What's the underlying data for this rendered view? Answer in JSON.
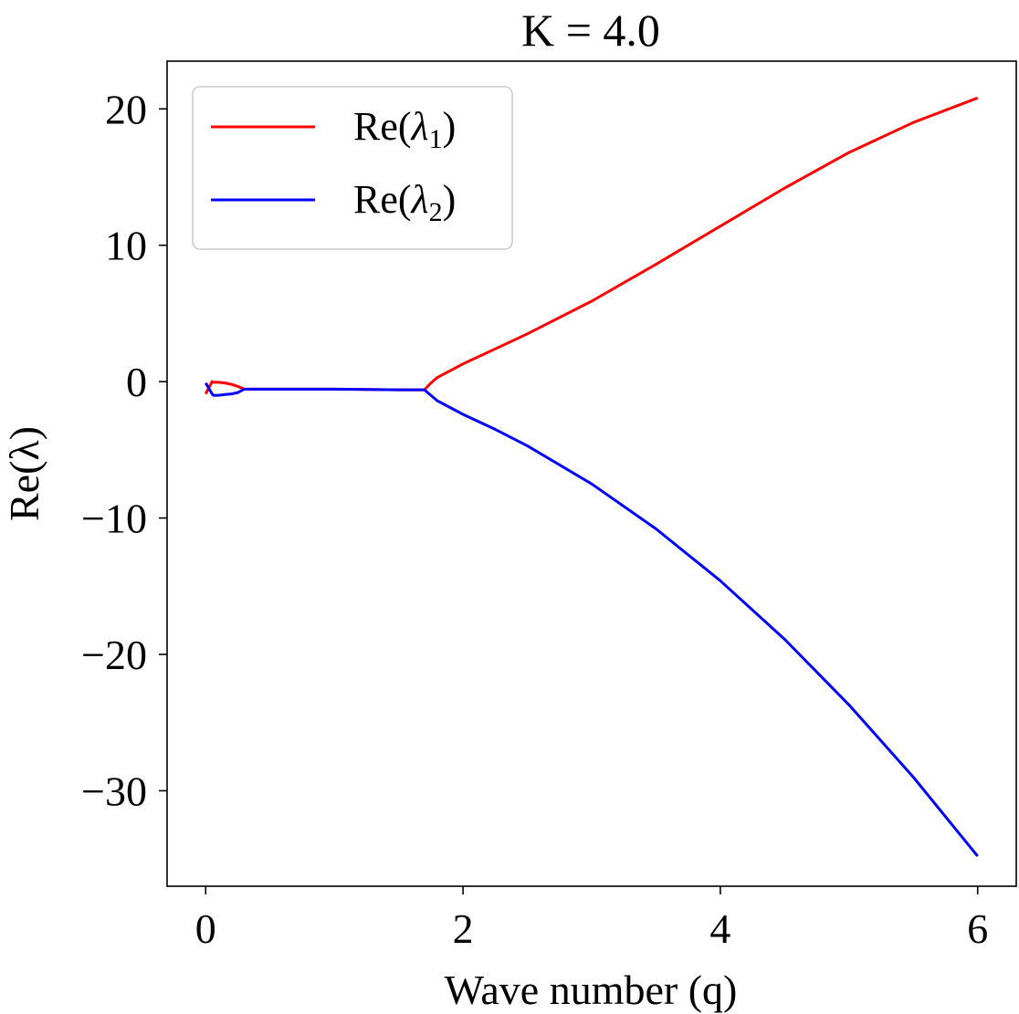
{
  "chart_data": {
    "type": "line",
    "title": "K = 4.0",
    "xlabel": "Wave number (q)",
    "ylabel": "Re(λ)",
    "xlim": [
      -0.3,
      6.3
    ],
    "ylim": [
      -37.0,
      23.5
    ],
    "xticks": [
      0,
      2,
      4,
      6
    ],
    "yticks": [
      20,
      10,
      0,
      -10,
      -20,
      -30
    ],
    "ytick_labels": [
      "20",
      "10",
      "0",
      "−10",
      "−20",
      "−30"
    ],
    "legend_position": "top-left",
    "grid": false,
    "series": [
      {
        "name": "Re(λ₁)",
        "label_main": "Re(",
        "label_symbol": "λ",
        "label_sub": "1",
        "label_close": ")",
        "color": "#ff0000",
        "x": [
          0.0,
          0.05,
          0.06,
          0.1,
          0.15,
          0.2,
          0.25,
          0.3,
          0.5,
          1.0,
          1.5,
          1.7,
          1.75,
          1.8,
          1.9,
          2.0,
          2.25,
          2.5,
          3.0,
          3.5,
          4.0,
          4.5,
          5.0,
          5.5,
          6.0
        ],
        "y": [
          -0.9,
          0.0,
          -0.05,
          -0.05,
          -0.1,
          -0.2,
          -0.35,
          -0.55,
          -0.55,
          -0.55,
          -0.6,
          -0.6,
          -0.1,
          0.3,
          0.8,
          1.3,
          2.4,
          3.5,
          5.9,
          8.6,
          11.4,
          14.2,
          16.8,
          19.0,
          20.8
        ]
      },
      {
        "name": "Re(λ₂)",
        "label_main": "Re(",
        "label_symbol": "λ",
        "label_sub": "2",
        "label_close": ")",
        "color": "#0000ff",
        "x": [
          0.0,
          0.05,
          0.06,
          0.1,
          0.15,
          0.2,
          0.25,
          0.3,
          0.5,
          1.0,
          1.5,
          1.7,
          1.75,
          1.8,
          1.9,
          2.0,
          2.25,
          2.5,
          3.0,
          3.5,
          4.0,
          4.5,
          5.0,
          5.5,
          6.0
        ],
        "y": [
          -0.1,
          -0.9,
          -1.0,
          -1.0,
          -0.95,
          -0.9,
          -0.8,
          -0.55,
          -0.55,
          -0.55,
          -0.6,
          -0.6,
          -1.0,
          -1.4,
          -1.9,
          -2.4,
          -3.5,
          -4.7,
          -7.5,
          -10.8,
          -14.6,
          -18.9,
          -23.7,
          -29.0,
          -34.8
        ]
      }
    ]
  }
}
